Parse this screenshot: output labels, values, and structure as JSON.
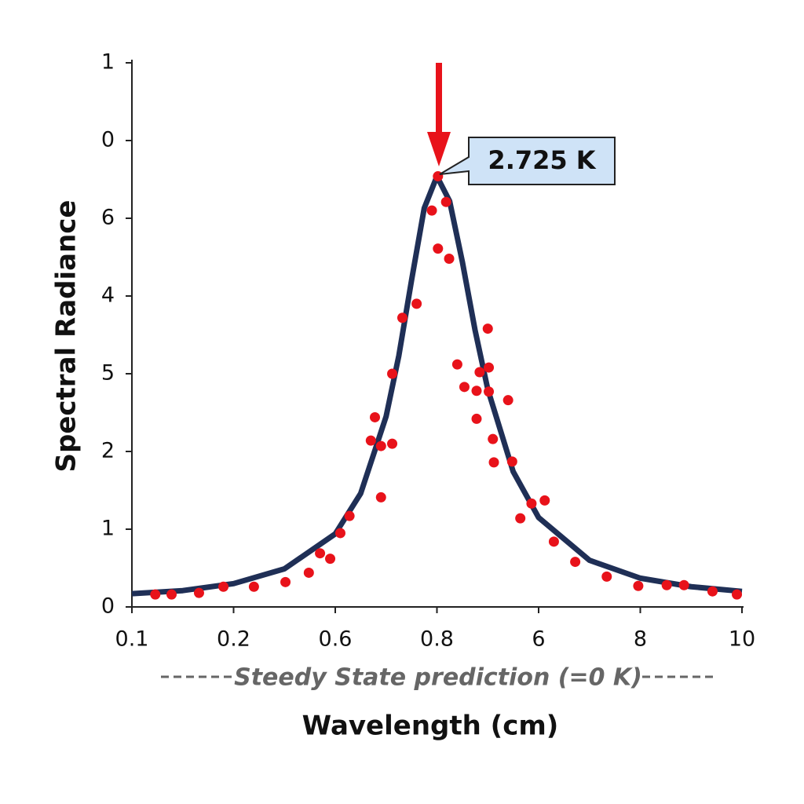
{
  "chart_data": {
    "type": "scatter",
    "x_label": "Wavelength (cm)",
    "y_label": "Spectral Radiance",
    "annotation": "2.725 K",
    "note": "Steedy State prediction (=0 K)",
    "xlim": [
      0,
      6
    ],
    "ylim": [
      0,
      7
    ],
    "xticks": [
      {
        "value": 0,
        "label": "0.1"
      },
      {
        "value": 1,
        "label": "0.2"
      },
      {
        "value": 2,
        "label": "0.6"
      },
      {
        "value": 3,
        "label": "0.8"
      },
      {
        "value": 4,
        "label": "6"
      },
      {
        "value": 5,
        "label": "8"
      },
      {
        "value": 6,
        "label": "10"
      }
    ],
    "yticks": [
      0,
      1,
      2,
      {
        "value": 3,
        "label": "5"
      },
      4,
      {
        "value": 5,
        "label": "6"
      },
      {
        "value": 6,
        "label": "0"
      },
      {
        "value": 7,
        "label": "1"
      }
    ],
    "series": [
      {
        "type": "line",
        "color": "#1f2f56",
        "x": [
          0,
          0.5,
          1,
          1.5,
          2,
          2.25,
          2.5,
          2.625,
          2.75,
          2.875,
          3,
          3.125,
          3.25,
          3.375,
          3.5,
          3.75,
          4,
          4.5,
          5,
          5.5,
          6
        ],
        "values": [
          0.17,
          0.21,
          0.3,
          0.49,
          0.94,
          1.46,
          2.45,
          3.23,
          4.2,
          5.13,
          5.54,
          5.22,
          4.44,
          3.56,
          2.8,
          1.74,
          1.15,
          0.6,
          0.37,
          0.26,
          0.2
        ]
      },
      {
        "type": "scatter",
        "color": "#e8121a",
        "x": [
          0.23,
          0.39,
          0.66,
          0.9,
          1.2,
          1.51,
          1.74,
          1.85,
          1.95,
          2.05,
          2.14,
          2.35,
          2.39,
          2.45,
          2.45,
          2.56,
          2.56,
          2.66,
          2.8,
          2.95,
          3.01,
          3.01,
          3.09,
          3.12,
          3.2,
          3.27,
          3.39,
          3.39,
          3.42,
          3.5,
          3.51,
          3.51,
          3.55,
          3.56,
          3.7,
          3.74,
          3.82,
          3.93,
          4.06,
          4.15,
          4.36,
          4.67,
          4.98,
          5.26,
          5.43,
          5.71,
          5.95
        ],
        "values": [
          0.16,
          0.16,
          0.18,
          0.26,
          0.26,
          0.32,
          0.44,
          0.69,
          0.62,
          0.95,
          1.17,
          2.14,
          2.44,
          2.07,
          1.41,
          3.0,
          2.1,
          3.72,
          3.9,
          5.1,
          5.54,
          4.61,
          5.21,
          4.48,
          3.12,
          2.83,
          2.42,
          2.78,
          3.02,
          3.58,
          3.08,
          2.77,
          2.16,
          1.86,
          2.66,
          1.87,
          1.14,
          1.33,
          1.37,
          0.84,
          0.58,
          0.39,
          0.27,
          0.28,
          0.28,
          0.2,
          0.16
        ]
      }
    ]
  }
}
